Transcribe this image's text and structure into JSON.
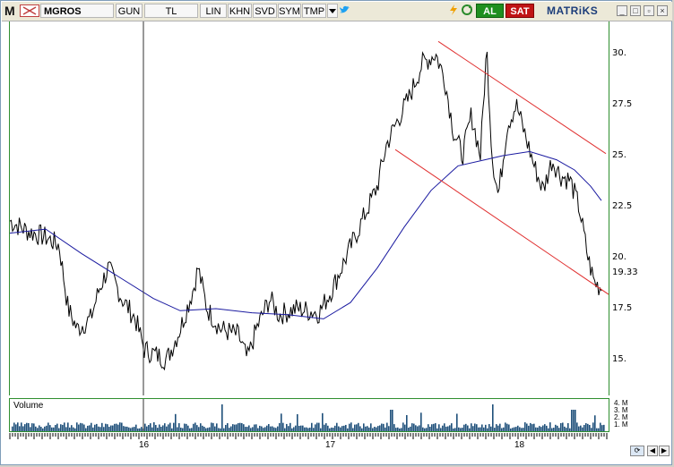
{
  "toolbar": {
    "logo": "M",
    "symbol": "MGROS",
    "period": "GUN",
    "currency": "TL",
    "scale": "LIN",
    "khn": "KHN",
    "svd": "SVD",
    "sym": "SYM",
    "tmp": "TMP",
    "buy_label": "AL",
    "sell_label": "SAT",
    "brand": "MATRiKS"
  },
  "y_axis": {
    "ticks": [
      "30.",
      "27.5",
      "25.",
      "22.5",
      "20.",
      "17.5",
      "15."
    ],
    "last_price": "19.33"
  },
  "x_axis": {
    "labels": [
      "16",
      "17",
      "18"
    ]
  },
  "volume": {
    "label": "Volume",
    "ticks": "4. M\n3. M\n2. M\n1. M"
  },
  "colors": {
    "price": "#000000",
    "moving_average": "#1a1aa0",
    "channel": "#e03030",
    "frame": "#2f8f2f",
    "volume": "#1e4f7a"
  }
}
